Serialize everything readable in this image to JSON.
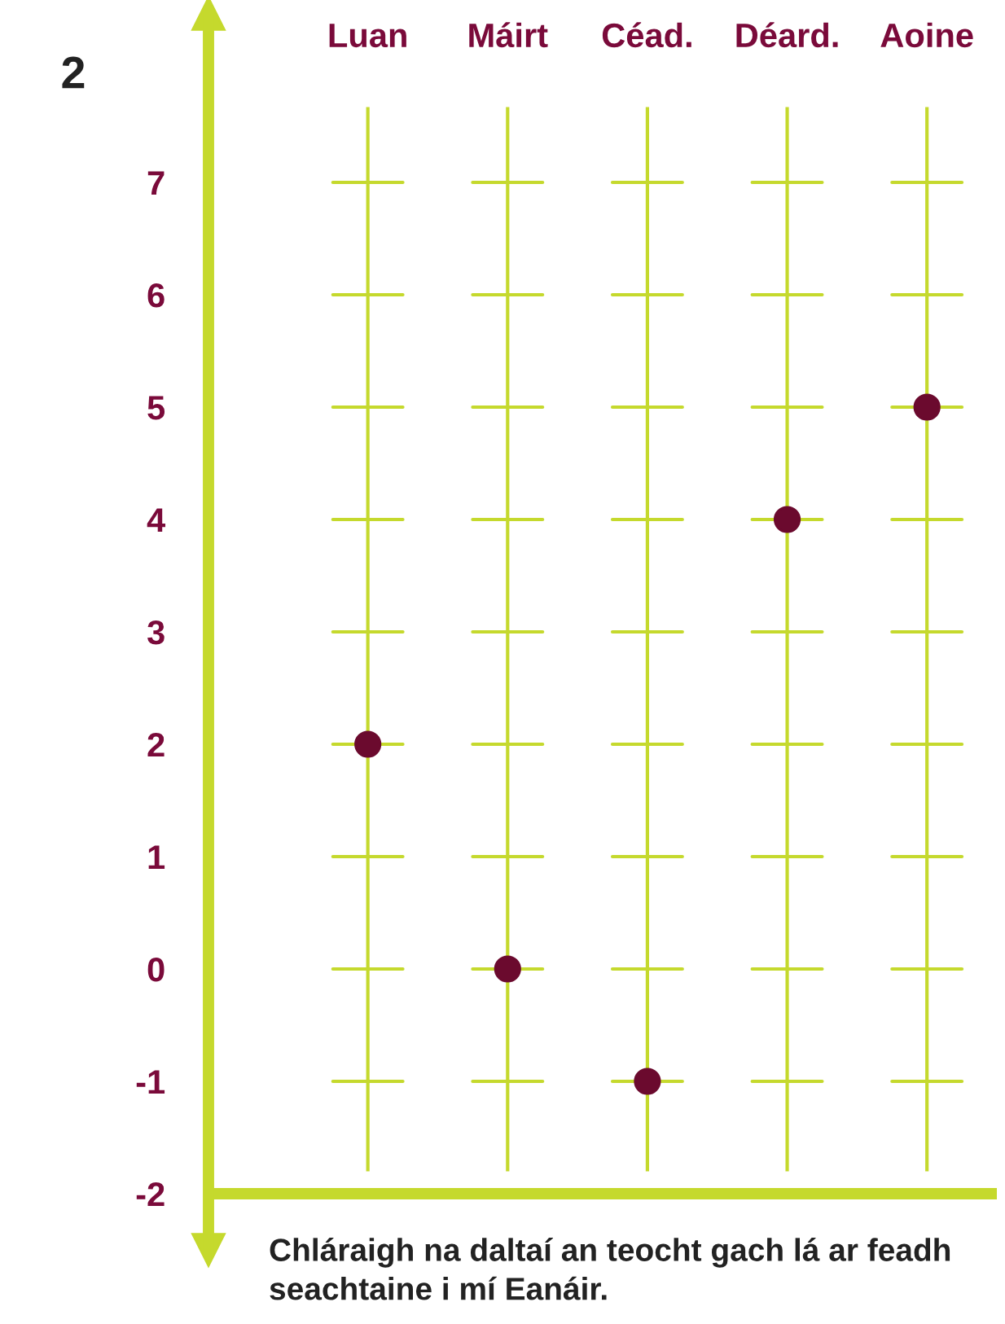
{
  "chart_data": {
    "type": "scatter",
    "categories": [
      "Luan",
      "Máirt",
      "Céad.",
      "Déard.",
      "Aoine"
    ],
    "series": [
      {
        "color": "#6b0a2e",
        "values": [
          2,
          0,
          -1,
          4,
          5
        ]
      }
    ],
    "ylim": [
      -2.5,
      7.9
    ],
    "yticks": [
      -2,
      -1,
      0,
      1,
      2,
      3,
      4,
      5,
      6,
      7
    ],
    "grid": "x",
    "marker": "circle",
    "ref_lines": [
      {
        "axis": "y",
        "value": -2,
        "color": "#c5d92d"
      }
    ],
    "annotations": [
      "2",
      "Chláraigh na daltaí an teocht gach lá ar feadh seachtaine i mí Eanáir."
    ]
  }
}
